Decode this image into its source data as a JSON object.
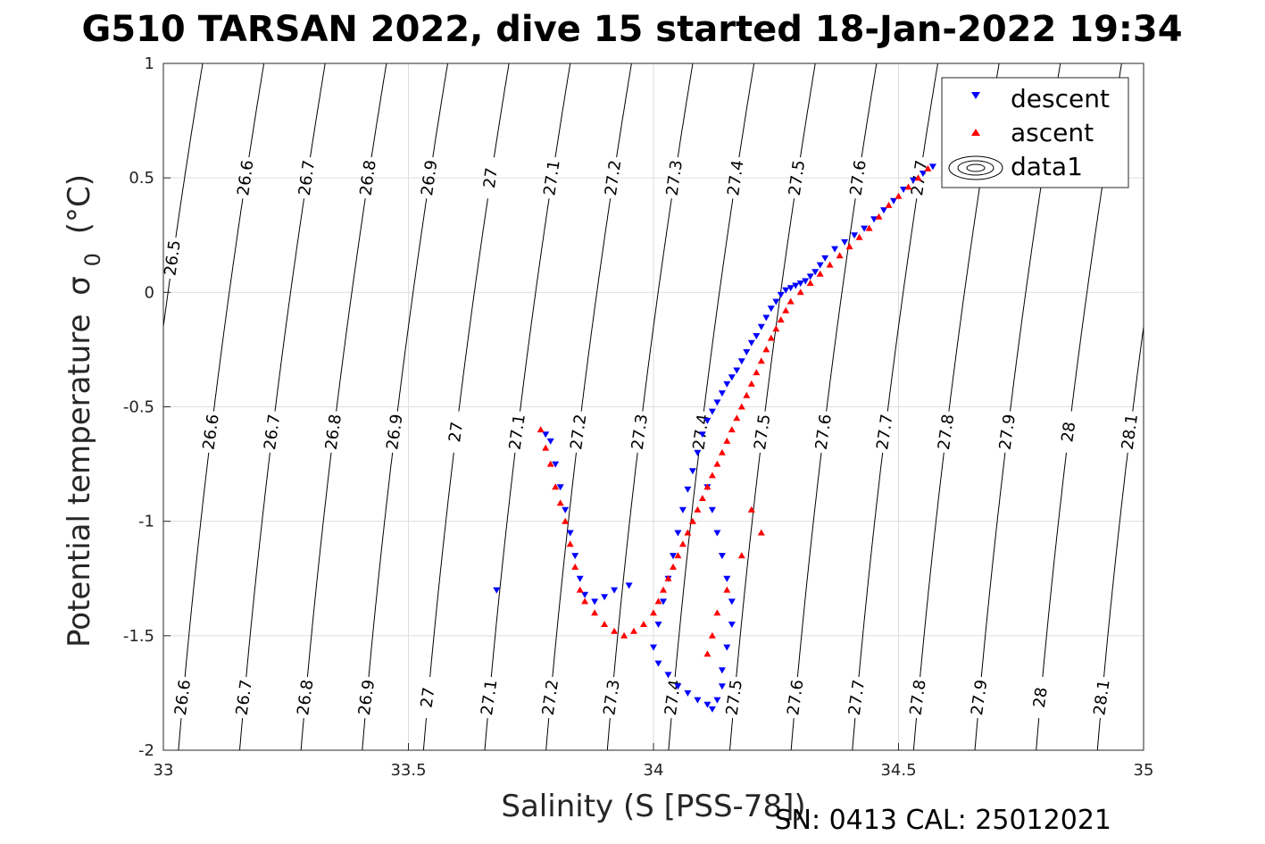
{
  "chart_data": {
    "type": "scatter",
    "title": "G510 TARSAN 2022, dive 15 started 18-Jan-2022 19:34",
    "xlabel": "Salinity (S [PSS-78])",
    "ylabel": "Potential temperature",
    "ylabel_symbol": "σ",
    "ylabel_sub": "0",
    "ylabel_unit": "(°C)",
    "footer": "SN: 0413  CAL: 25012021",
    "xlim": [
      33,
      35
    ],
    "ylim": [
      -2,
      1
    ],
    "xticks": [
      33,
      33.5,
      34,
      34.5,
      35
    ],
    "xtick_labels": [
      "33",
      "33.5",
      "34",
      "34.5",
      "35"
    ],
    "yticks": [
      1,
      0.5,
      0,
      -0.5,
      -1,
      -1.5,
      -2
    ],
    "ytick_labels": [
      "1",
      "0.5",
      "0",
      "-0.5",
      "-1",
      "-1.5",
      "-2"
    ],
    "grid": true,
    "legend_position": "top-right",
    "density_contours": {
      "levels": [
        "26.5",
        "26.6",
        "26.7",
        "26.8",
        "26.9",
        "27",
        "27.1",
        "27.2",
        "27.3",
        "27.4",
        "27.5",
        "27.6",
        "27.7",
        "27.8",
        "27.9",
        "28",
        "28.1"
      ],
      "label_rows": [
        {
          "y": 0.5,
          "levels": [
            "26.6",
            "26.7",
            "26.8",
            "26.9",
            "27",
            "27.1",
            "27.2",
            "27.3",
            "27.4",
            "27.5",
            "27.6",
            "27.7"
          ]
        },
        {
          "y": 0.15,
          "levels": [
            "26.5"
          ]
        },
        {
          "y": -0.61,
          "levels": [
            "26.6",
            "26.7",
            "26.8",
            "26.9",
            "27",
            "27.1",
            "27.2",
            "27.3",
            "27.4",
            "27.5",
            "27.6",
            "27.7",
            "27.8",
            "27.9",
            "28",
            "28.1"
          ]
        },
        {
          "y": -1.77,
          "levels": [
            "26.6",
            "26.7",
            "26.8",
            "26.9",
            "27",
            "27.1",
            "27.2",
            "27.3",
            "27.4",
            "27.5",
            "27.6",
            "27.7",
            "27.8",
            "27.9",
            "28",
            "28.1"
          ]
        }
      ]
    },
    "legend": [
      {
        "label": "descent",
        "color": "#0000ff",
        "marker": "triangle-down"
      },
      {
        "label": "ascent",
        "color": "#ff0000",
        "marker": "triangle-up"
      },
      {
        "label": "data1",
        "color": "#000000",
        "marker": "contour"
      }
    ],
    "series": [
      {
        "name": "descent",
        "color": "#0000ff",
        "marker": "triangle-down",
        "points": [
          [
            34.57,
            0.55
          ],
          [
            34.55,
            0.52
          ],
          [
            34.53,
            0.49
          ],
          [
            34.51,
            0.45
          ],
          [
            34.49,
            0.4
          ],
          [
            34.47,
            0.36
          ],
          [
            34.45,
            0.32
          ],
          [
            34.43,
            0.28
          ],
          [
            34.41,
            0.25
          ],
          [
            34.39,
            0.22
          ],
          [
            34.37,
            0.19
          ],
          [
            34.35,
            0.15
          ],
          [
            34.34,
            0.12
          ],
          [
            34.33,
            0.09
          ],
          [
            34.32,
            0.07
          ],
          [
            34.31,
            0.05
          ],
          [
            34.3,
            0.04
          ],
          [
            34.29,
            0.03
          ],
          [
            34.28,
            0.02
          ],
          [
            34.27,
            0.01
          ],
          [
            34.26,
            -0.01
          ],
          [
            34.25,
            -0.04
          ],
          [
            34.24,
            -0.07
          ],
          [
            34.23,
            -0.11
          ],
          [
            34.22,
            -0.15
          ],
          [
            34.21,
            -0.19
          ],
          [
            34.2,
            -0.22
          ],
          [
            34.19,
            -0.26
          ],
          [
            34.18,
            -0.3
          ],
          [
            34.17,
            -0.34
          ],
          [
            34.16,
            -0.37
          ],
          [
            34.15,
            -0.4
          ],
          [
            34.14,
            -0.44
          ],
          [
            34.13,
            -0.48
          ],
          [
            34.12,
            -0.52
          ],
          [
            34.11,
            -0.56
          ],
          [
            34.1,
            -0.62
          ],
          [
            34.09,
            -0.7
          ],
          [
            34.08,
            -0.78
          ],
          [
            34.07,
            -0.86
          ],
          [
            34.06,
            -0.95
          ],
          [
            34.05,
            -1.05
          ],
          [
            34.04,
            -1.15
          ],
          [
            34.03,
            -1.25
          ],
          [
            34.02,
            -1.35
          ],
          [
            34.01,
            -1.45
          ],
          [
            34.0,
            -1.55
          ],
          [
            34.01,
            -1.62
          ],
          [
            34.03,
            -1.67
          ],
          [
            34.05,
            -1.72
          ],
          [
            34.07,
            -1.75
          ],
          [
            34.09,
            -1.78
          ],
          [
            34.11,
            -1.8
          ],
          [
            34.12,
            -1.82
          ],
          [
            34.13,
            -1.78
          ],
          [
            34.14,
            -1.72
          ],
          [
            34.14,
            -1.65
          ],
          [
            34.15,
            -1.55
          ],
          [
            34.16,
            -1.45
          ],
          [
            34.16,
            -1.35
          ],
          [
            34.15,
            -1.25
          ],
          [
            34.14,
            -1.15
          ],
          [
            34.13,
            -1.05
          ],
          [
            34.12,
            -0.95
          ],
          [
            34.11,
            -0.85
          ],
          [
            33.95,
            -1.28
          ],
          [
            33.92,
            -1.3
          ],
          [
            33.9,
            -1.33
          ],
          [
            33.88,
            -1.35
          ],
          [
            33.86,
            -1.32
          ],
          [
            33.85,
            -1.25
          ],
          [
            33.84,
            -1.15
          ],
          [
            33.83,
            -1.05
          ],
          [
            33.82,
            -0.95
          ],
          [
            33.81,
            -0.85
          ],
          [
            33.8,
            -0.75
          ],
          [
            33.79,
            -0.65
          ],
          [
            33.78,
            -0.62
          ],
          [
            33.68,
            -1.3
          ]
        ]
      },
      {
        "name": "ascent",
        "color": "#ff0000",
        "marker": "triangle-up",
        "points": [
          [
            34.56,
            0.54
          ],
          [
            34.54,
            0.5
          ],
          [
            34.52,
            0.46
          ],
          [
            34.5,
            0.42
          ],
          [
            34.48,
            0.38
          ],
          [
            34.46,
            0.33
          ],
          [
            34.44,
            0.28
          ],
          [
            34.42,
            0.24
          ],
          [
            34.4,
            0.2
          ],
          [
            34.38,
            0.16
          ],
          [
            34.36,
            0.12
          ],
          [
            34.34,
            0.08
          ],
          [
            34.32,
            0.04
          ],
          [
            34.3,
            0.0
          ],
          [
            34.28,
            -0.04
          ],
          [
            34.27,
            -0.08
          ],
          [
            34.26,
            -0.12
          ],
          [
            34.25,
            -0.16
          ],
          [
            34.24,
            -0.2
          ],
          [
            34.23,
            -0.25
          ],
          [
            34.22,
            -0.3
          ],
          [
            34.21,
            -0.35
          ],
          [
            34.2,
            -0.4
          ],
          [
            34.19,
            -0.45
          ],
          [
            34.18,
            -0.5
          ],
          [
            34.17,
            -0.55
          ],
          [
            34.16,
            -0.6
          ],
          [
            34.15,
            -0.65
          ],
          [
            34.14,
            -0.7
          ],
          [
            34.13,
            -0.75
          ],
          [
            34.12,
            -0.8
          ],
          [
            34.11,
            -0.85
          ],
          [
            34.1,
            -0.9
          ],
          [
            34.09,
            -0.95
          ],
          [
            34.08,
            -1.0
          ],
          [
            34.07,
            -1.05
          ],
          [
            34.06,
            -1.1
          ],
          [
            34.05,
            -1.15
          ],
          [
            34.04,
            -1.2
          ],
          [
            34.03,
            -1.25
          ],
          [
            34.02,
            -1.3
          ],
          [
            34.01,
            -1.35
          ],
          [
            34.0,
            -1.4
          ],
          [
            33.98,
            -1.45
          ],
          [
            33.96,
            -1.48
          ],
          [
            33.94,
            -1.5
          ],
          [
            33.92,
            -1.48
          ],
          [
            33.9,
            -1.45
          ],
          [
            33.88,
            -1.4
          ],
          [
            33.86,
            -1.35
          ],
          [
            33.85,
            -1.3
          ],
          [
            33.84,
            -1.2
          ],
          [
            33.83,
            -1.1
          ],
          [
            33.82,
            -1.0
          ],
          [
            33.81,
            -0.92
          ],
          [
            33.8,
            -0.85
          ],
          [
            33.79,
            -0.75
          ],
          [
            33.78,
            -0.68
          ],
          [
            33.77,
            -0.6
          ],
          [
            34.2,
            -0.95
          ],
          [
            34.22,
            -1.05
          ],
          [
            34.18,
            -1.15
          ],
          [
            34.15,
            -1.3
          ],
          [
            34.13,
            -1.4
          ],
          [
            34.12,
            -1.5
          ],
          [
            34.11,
            -1.58
          ]
        ]
      }
    ]
  }
}
